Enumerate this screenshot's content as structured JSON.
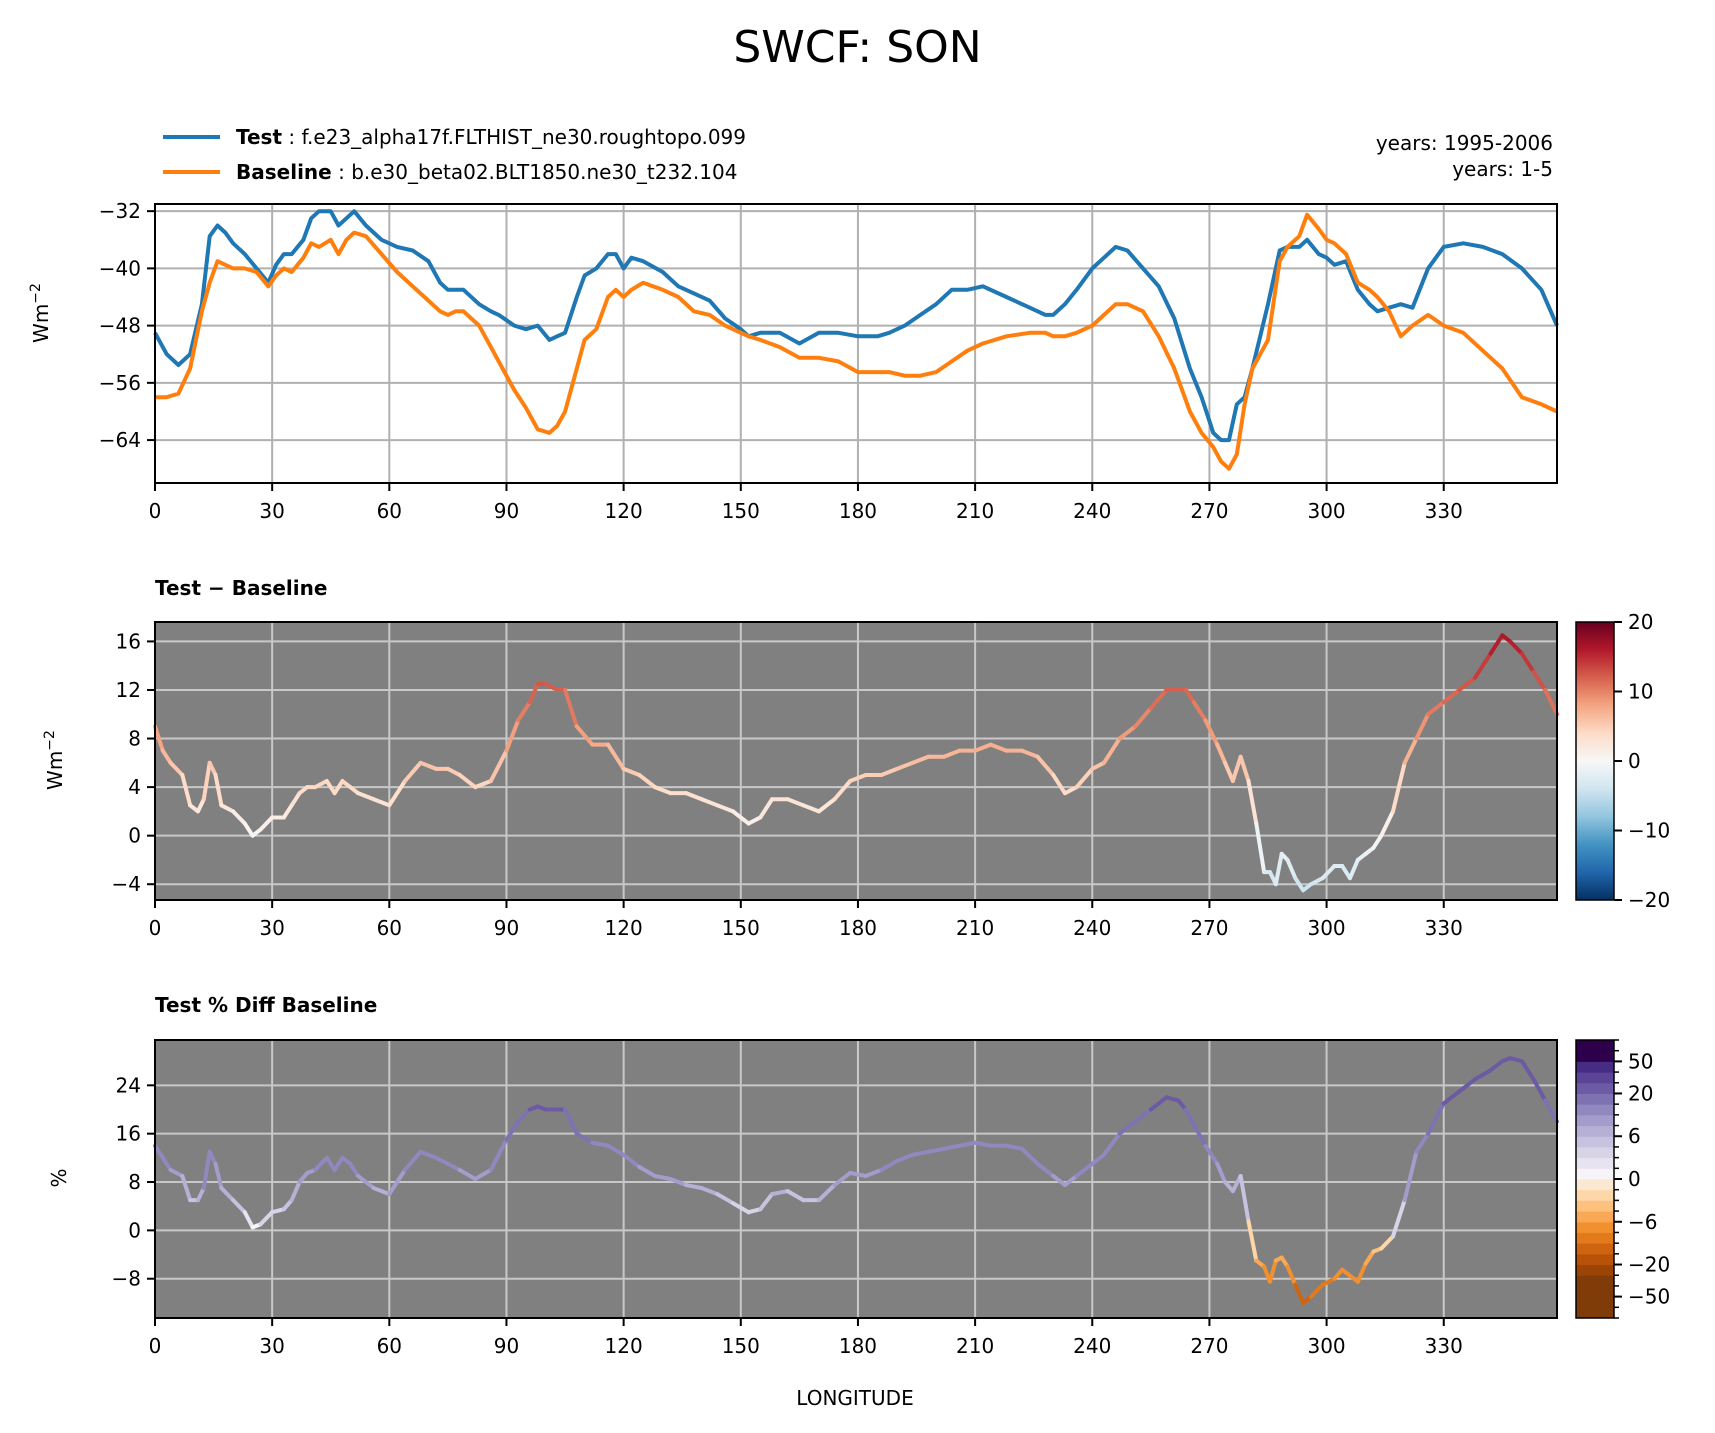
{
  "title": "SWCF: SON",
  "legend": {
    "test_label": "Test",
    "test_case": "f.e23_alpha17f.FLTHIST_ne30.roughtopo.099",
    "baseline_label": "Baseline",
    "baseline_case": "b.e30_beta02.BLT1850.ne30_t232.104",
    "test_color": "#1f77b4",
    "baseline_color": "#ff7f0e"
  },
  "years": {
    "test": "years: 1995-2006",
    "baseline": "years: 1-5"
  },
  "colors": {
    "panel_bg": "#808080",
    "grid_light": "#b0b0b0",
    "grid_on_gray": "#c8c8c8"
  },
  "chart_data": [
    {
      "type": "line",
      "xlabel": "",
      "ylabel": "Wm",
      "ylabel_sup": "−2",
      "xlim": [
        0,
        359
      ],
      "ylim": [
        -70,
        -31
      ],
      "xticks": [
        0,
        30,
        60,
        90,
        120,
        150,
        180,
        210,
        240,
        270,
        300,
        330
      ],
      "yticks": [
        -32,
        -40,
        -48,
        -56,
        -64
      ],
      "grid": true,
      "series": [
        {
          "name": "Test",
          "color": "#1f77b4",
          "x": [
            0,
            3,
            6,
            9,
            12,
            14,
            16,
            18,
            20,
            23,
            26,
            29,
            31,
            33,
            35,
            38,
            40,
            42,
            45,
            47,
            49,
            51,
            54,
            58,
            62,
            66,
            70,
            73,
            75,
            77,
            79,
            83,
            86,
            88,
            92,
            95,
            98,
            101,
            103,
            105,
            108,
            110,
            113,
            116,
            118,
            120,
            122,
            125,
            130,
            134,
            138,
            142,
            146,
            150,
            152,
            155,
            160,
            165,
            170,
            175,
            180,
            185,
            188,
            192,
            196,
            200,
            204,
            208,
            212,
            218,
            224,
            228,
            230,
            233,
            236,
            240,
            243,
            246,
            249,
            253,
            257,
            261,
            265,
            268,
            271,
            273,
            275,
            277,
            279,
            281,
            285,
            288,
            290,
            293,
            295,
            298,
            300,
            302,
            305,
            308,
            311,
            313,
            316,
            319,
            322,
            326,
            330,
            335,
            340,
            345,
            350,
            355,
            359
          ],
          "values": [
            -49,
            -52,
            -53.5,
            -52,
            -45,
            -35.5,
            -34,
            -35,
            -36.5,
            -38,
            -40,
            -42,
            -39.5,
            -38,
            -38,
            -36,
            -33,
            -32,
            -32,
            -34,
            -33,
            -32,
            -34,
            -36,
            -37,
            -37.5,
            -39,
            -42,
            -43,
            -43,
            -43,
            -45,
            -46,
            -46.5,
            -48,
            -48.5,
            -48,
            -50,
            -49.5,
            -49,
            -44,
            -41,
            -40,
            -38,
            -38,
            -40,
            -38.5,
            -39,
            -40.5,
            -42.5,
            -43.5,
            -44.5,
            -47,
            -48.5,
            -49.5,
            -49,
            -49,
            -50.5,
            -49,
            -49,
            -49.5,
            -49.5,
            -49,
            -48,
            -46.5,
            -45,
            -43,
            -43,
            -42.5,
            -44,
            -45.5,
            -46.5,
            -46.5,
            -45,
            -43,
            -40,
            -38.5,
            -37,
            -37.5,
            -40,
            -42.5,
            -47,
            -54,
            -58,
            -63,
            -64,
            -64,
            -59,
            -58,
            -54,
            -45,
            -37.5,
            -37,
            -37,
            -36,
            -38,
            -38.5,
            -39.5,
            -39,
            -43,
            -45,
            -46,
            -45.5,
            -45,
            -45.5,
            -40,
            -37,
            -36.5,
            -37,
            -38,
            -40,
            -43,
            -48
          ]
        },
        {
          "name": "Baseline",
          "color": "#ff7f0e",
          "x": [
            0,
            3,
            6,
            9,
            12,
            14,
            16,
            18,
            20,
            23,
            26,
            29,
            31,
            33,
            35,
            38,
            40,
            42,
            45,
            47,
            49,
            51,
            54,
            58,
            62,
            66,
            70,
            73,
            75,
            77,
            79,
            83,
            86,
            88,
            92,
            95,
            98,
            101,
            103,
            105,
            108,
            110,
            113,
            116,
            118,
            120,
            122,
            125,
            130,
            134,
            138,
            142,
            146,
            150,
            152,
            155,
            160,
            165,
            170,
            175,
            180,
            185,
            188,
            192,
            196,
            200,
            204,
            208,
            212,
            218,
            224,
            228,
            230,
            233,
            236,
            240,
            243,
            246,
            249,
            253,
            257,
            261,
            265,
            268,
            271,
            273,
            275,
            277,
            279,
            281,
            285,
            288,
            290,
            293,
            295,
            298,
            300,
            302,
            305,
            308,
            311,
            313,
            316,
            319,
            322,
            326,
            330,
            335,
            340,
            345,
            350,
            355,
            359
          ],
          "values": [
            -58,
            -58,
            -57.5,
            -54,
            -46,
            -42,
            -39,
            -39.5,
            -40,
            -40,
            -40.5,
            -42.5,
            -41,
            -40,
            -40.5,
            -38.5,
            -36.5,
            -37,
            -36,
            -38,
            -36,
            -35,
            -35.5,
            -38,
            -40.5,
            -42.5,
            -44.5,
            -46,
            -46.5,
            -46,
            -46,
            -48,
            -51,
            -53,
            -57,
            -59.5,
            -62.5,
            -63,
            -62,
            -60,
            -54,
            -50,
            -48.5,
            -44,
            -43,
            -44,
            -43,
            -42,
            -43,
            -44,
            -46,
            -46.5,
            -48,
            -49,
            -49.5,
            -50,
            -51,
            -52.5,
            -52.5,
            -53,
            -54.5,
            -54.5,
            -54.5,
            -55,
            -55,
            -54.5,
            -53,
            -51.5,
            -50.5,
            -49.5,
            -49,
            -49,
            -49.5,
            -49.5,
            -49,
            -48,
            -46.5,
            -45,
            -45,
            -46,
            -49.5,
            -54,
            -60,
            -63,
            -65,
            -67,
            -68,
            -66,
            -59,
            -54,
            -50,
            -39,
            -37,
            -35.5,
            -32.5,
            -34.5,
            -36,
            -36.5,
            -38,
            -42,
            -43,
            -44,
            -46,
            -49.5,
            -48,
            -46.5,
            -48,
            -49,
            -51.5,
            -54,
            -58,
            -59,
            -60
          ]
        }
      ]
    },
    {
      "type": "line",
      "title": "Test − Baseline",
      "xlabel": "",
      "ylabel": "Wm",
      "ylabel_sup": "−2",
      "xlim": [
        0,
        359
      ],
      "ylim": [
        -5.3,
        17.6
      ],
      "xticks": [
        0,
        30,
        60,
        90,
        120,
        150,
        180,
        210,
        240,
        270,
        300,
        330
      ],
      "yticks": [
        16,
        12,
        8,
        4,
        0,
        -4
      ],
      "grid": true,
      "colorbar": {
        "colormap": "RdBu_r",
        "range": [
          -20,
          20
        ],
        "tick_labels": [
          "20",
          "10",
          "0",
          "−10",
          "−20"
        ],
        "tick_values": [
          20,
          10,
          0,
          -10,
          -20
        ]
      },
      "series": [
        {
          "name": "",
          "x": [
            0,
            2,
            4,
            7,
            9,
            11,
            12.5,
            14,
            15.5,
            17,
            20,
            23,
            25,
            27,
            30,
            33,
            35,
            37,
            39,
            41,
            44,
            46,
            48,
            50,
            52,
            56,
            60,
            64,
            68,
            72,
            75,
            78,
            82,
            86,
            90,
            93,
            96,
            98,
            100,
            103,
            105,
            108,
            112,
            116,
            120,
            124,
            128,
            132,
            136,
            140,
            144,
            148,
            152,
            155,
            158,
            162,
            166,
            170,
            174,
            178,
            182,
            186,
            190,
            194,
            198,
            202,
            206,
            210,
            214,
            218,
            222,
            226,
            230,
            233,
            236,
            240,
            243,
            247,
            251,
            255,
            259,
            262,
            264,
            266,
            269,
            272,
            274,
            276,
            278,
            280,
            282,
            284,
            285.5,
            287,
            288.5,
            290,
            292,
            294,
            296,
            299,
            302,
            304,
            306,
            308,
            310,
            312,
            314,
            317,
            320,
            323,
            326,
            330,
            334,
            338,
            342,
            345,
            347,
            350,
            353,
            356,
            359
          ],
          "values": [
            9,
            7,
            6,
            5,
            2.5,
            2,
            3,
            6,
            5,
            2.5,
            2,
            1,
            0,
            0.5,
            1.5,
            1.5,
            2.5,
            3.5,
            4,
            4,
            4.5,
            3.5,
            4.5,
            4,
            3.5,
            3,
            2.5,
            4.5,
            6,
            5.5,
            5.5,
            5,
            4,
            4.5,
            7,
            9.5,
            11,
            12.5,
            12.5,
            12,
            12,
            9,
            7.5,
            7.5,
            5.5,
            5,
            4,
            3.5,
            3.5,
            3,
            2.5,
            2,
            1,
            1.5,
            3,
            3,
            2.5,
            2,
            3,
            4.5,
            5,
            5,
            5.5,
            6,
            6.5,
            6.5,
            7,
            7,
            7.5,
            7,
            7,
            6.5,
            5,
            3.5,
            4,
            5.5,
            6,
            8,
            9,
            10.5,
            12,
            12,
            12,
            11,
            9.5,
            7.5,
            6,
            4.5,
            6.5,
            4.5,
            1,
            -3,
            -3,
            -4,
            -1.5,
            -2,
            -3.5,
            -4.5,
            -4,
            -3.5,
            -2.5,
            -2.5,
            -3.5,
            -2,
            -1.5,
            -1,
            0,
            2,
            6,
            8,
            10,
            11,
            12,
            13,
            15,
            16.5,
            16,
            15,
            13.5,
            12,
            10
          ]
        }
      ]
    },
    {
      "type": "line",
      "title": "Test % Diff Baseline",
      "xlabel": "LONGITUDE",
      "ylabel": "%",
      "xlim": [
        0,
        359
      ],
      "ylim": [
        -14.5,
        31.5
      ],
      "xticks": [
        0,
        30,
        60,
        90,
        120,
        150,
        180,
        210,
        240,
        270,
        300,
        330
      ],
      "yticks": [
        24,
        16,
        8,
        0,
        -8
      ],
      "grid": true,
      "colorbar": {
        "colormap": "PuOr_r",
        "tick_labels": [
          "50",
          "20",
          "6",
          "0",
          "−6",
          "−20",
          "−50"
        ],
        "tick_values": [
          50,
          20,
          6,
          0,
          -6,
          -20,
          -50
        ],
        "levels": [
          -70,
          -60,
          -50,
          -40,
          -30,
          -20,
          -15,
          -10,
          -8,
          -6,
          -4,
          -2,
          -1,
          0,
          1,
          2,
          4,
          6,
          8,
          10,
          15,
          20,
          30,
          40,
          50,
          60,
          70
        ]
      },
      "series": [
        {
          "name": "",
          "x": [
            0,
            2,
            4,
            7,
            9,
            11,
            12.5,
            14,
            15.5,
            17,
            20,
            23,
            25,
            27,
            30,
            33,
            35,
            37,
            39,
            41,
            44,
            46,
            48,
            50,
            52,
            56,
            60,
            64,
            68,
            72,
            75,
            78,
            82,
            86,
            90,
            93,
            96,
            98,
            100,
            103,
            105,
            108,
            112,
            116,
            120,
            124,
            128,
            132,
            136,
            140,
            144,
            148,
            152,
            155,
            158,
            162,
            166,
            170,
            174,
            178,
            182,
            186,
            190,
            194,
            198,
            202,
            206,
            210,
            214,
            218,
            222,
            226,
            230,
            233,
            236,
            240,
            243,
            247,
            251,
            255,
            259,
            262,
            264,
            266,
            269,
            272,
            274,
            276,
            278,
            280,
            282,
            284,
            285.5,
            287,
            288.5,
            290,
            292,
            294,
            296,
            299,
            302,
            304,
            306,
            308,
            310,
            312,
            314,
            317,
            320,
            323,
            326,
            330,
            334,
            338,
            342,
            345,
            347,
            350,
            353,
            356,
            359
          ],
          "values": [
            14,
            12,
            10,
            9,
            5,
            5,
            7,
            13,
            11,
            7,
            5,
            3,
            0.5,
            1,
            3,
            3.5,
            5,
            8,
            9.5,
            10,
            12,
            10,
            12,
            11,
            9,
            7,
            6,
            10,
            13,
            12,
            11,
            10,
            8.5,
            10,
            15,
            18,
            20,
            20.5,
            20,
            20,
            20,
            16,
            14.5,
            14,
            12.5,
            10.5,
            9,
            8.5,
            7.5,
            7,
            6,
            4.5,
            3,
            3.5,
            6,
            6.5,
            5,
            5,
            7.5,
            9.5,
            9,
            10,
            11.5,
            12.5,
            13,
            13.5,
            14,
            14.5,
            14,
            14,
            13.5,
            11,
            9,
            7.5,
            9,
            11,
            12.5,
            16,
            18,
            20,
            22,
            21.5,
            20,
            17.5,
            14,
            11,
            8,
            6.5,
            9,
            1.5,
            -5,
            -6,
            -8.5,
            -5,
            -4.5,
            -6,
            -9,
            -12,
            -11,
            -9,
            -8,
            -6.5,
            -7.5,
            -8.5,
            -5.5,
            -3.5,
            -3,
            -1,
            5,
            13,
            16,
            21,
            23,
            25,
            26.5,
            28,
            28.5,
            28,
            25,
            21.5,
            18
          ]
        }
      ]
    }
  ]
}
